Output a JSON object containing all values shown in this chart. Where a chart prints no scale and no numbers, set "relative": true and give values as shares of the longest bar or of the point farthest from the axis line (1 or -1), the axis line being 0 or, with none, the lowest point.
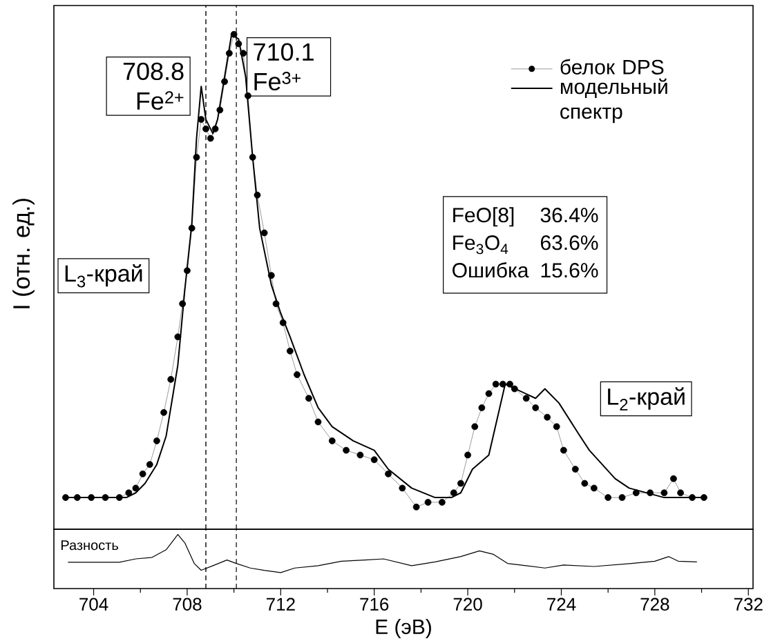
{
  "chart_data": [
    {
      "type": "line",
      "relative": true,
      "ylabel": "I (отн. ед.)",
      "xlim": [
        702.3,
        732.2
      ],
      "xticks": [
        704,
        708,
        712,
        716,
        720,
        724,
        728,
        732
      ],
      "tick_labels": false,
      "legend": "top right",
      "series": [
        {
          "name": "белок DPS",
          "color": "#000000",
          "marker": "circle",
          "x": [
            702.8,
            703.3,
            703.9,
            704.5,
            705.1,
            705.5,
            705.8,
            706.1,
            706.4,
            706.7,
            707.0,
            707.3,
            707.6,
            707.8,
            708.0,
            708.2,
            708.4,
            708.6,
            708.8,
            709.0,
            709.2,
            709.4,
            709.6,
            709.8,
            710.0,
            710.2,
            710.4,
            710.6,
            710.8,
            711.0,
            711.3,
            711.6,
            711.8,
            712.1,
            712.4,
            712.7,
            713.2,
            713.6,
            714.2,
            714.8,
            715.4,
            716.0,
            716.6,
            717.2,
            717.8,
            718.3,
            718.9,
            719.4,
            719.7,
            720.0,
            720.3,
            720.6,
            720.9,
            721.2,
            721.5,
            721.8,
            722.0,
            722.5,
            722.9,
            723.4,
            723.8,
            724.1,
            724.6,
            725.0,
            725.4,
            726.0,
            726.6,
            727.2,
            727.8,
            728.4,
            728.8,
            729.1,
            729.6,
            730.1
          ],
          "values": [
            0.02,
            0.02,
            0.02,
            0.02,
            0.02,
            0.03,
            0.04,
            0.07,
            0.09,
            0.14,
            0.2,
            0.27,
            0.36,
            0.43,
            0.5,
            0.59,
            0.74,
            0.82,
            0.8,
            0.78,
            0.8,
            0.84,
            0.9,
            0.96,
            1,
            0.98,
            0.96,
            0.87,
            0.74,
            0.66,
            0.58,
            0.49,
            0.43,
            0.39,
            0.33,
            0.28,
            0.23,
            0.18,
            0.14,
            0.12,
            0.11,
            0.1,
            0.07,
            0.04,
            0,
            0.01,
            0.01,
            0.03,
            0.05,
            0.11,
            0.17,
            0.21,
            0.24,
            0.26,
            0.26,
            0.26,
            0.25,
            0.23,
            0.21,
            0.19,
            0.17,
            0.12,
            0.08,
            0.05,
            0.04,
            0.02,
            0.02,
            0.03,
            0.03,
            0.03,
            0.06,
            0.03,
            0.02,
            0.02
          ]
        },
        {
          "name": "модельный спектр",
          "color": "#000000",
          "marker": "none",
          "x": [
            702.8,
            705.4,
            705.8,
            706.2,
            706.7,
            707.1,
            707.6,
            707.9,
            708.2,
            708.4,
            708.6,
            708.8,
            709.1,
            709.3,
            709.6,
            709.9,
            710.2,
            710.5,
            710.8,
            711.1,
            711.6,
            712.0,
            712.4,
            713.0,
            713.6,
            714.2,
            715.1,
            716.0,
            716.6,
            717.6,
            718.6,
            719.3,
            719.7,
            720.2,
            720.9,
            721.6,
            722.9,
            723.3,
            723.9,
            724.8,
            725.2,
            726.3,
            726.9,
            728.4,
            728.9,
            730.2
          ],
          "values": [
            0.02,
            0.02,
            0.03,
            0.05,
            0.09,
            0.15,
            0.3,
            0.46,
            0.6,
            0.78,
            0.89,
            0.82,
            0.79,
            0.82,
            0.91,
            1,
            0.99,
            0.91,
            0.74,
            0.59,
            0.47,
            0.41,
            0.36,
            0.28,
            0.21,
            0.17,
            0.14,
            0.12,
            0.08,
            0.04,
            0.02,
            0.02,
            0.03,
            0.08,
            0.11,
            0.26,
            0.23,
            0.25,
            0.22,
            0.15,
            0.12,
            0.06,
            0.04,
            0.02,
            0.02,
            0.02
          ]
        }
      ],
      "ref_lines": [
        {
          "axis": "x",
          "value": 708.8,
          "label": "708.8 Fe$^{2+}$",
          "line_style": "dashed"
        },
        {
          "axis": "x",
          "value": 710.1,
          "label": "710.1 Fe$^{3+}$",
          "line_style": "dashed"
        }
      ],
      "annotations": [
        "L$_{3}$-край",
        "L$_{2}$-край",
        "FeO[8]",
        "36.4%",
        "Fe$_{3}$O$_{4}$",
        "63.6%",
        "Ошибка",
        "15.6%"
      ]
    },
    {
      "type": "line",
      "relative": true,
      "xlabel": "E (эВ)",
      "xlim": [
        702.3,
        732.2
      ],
      "xticks": [
        704,
        708,
        712,
        716,
        720,
        724,
        728,
        732
      ],
      "tick_labels": "x",
      "series": [
        {
          "color": "#000000",
          "x": [
            702.9,
            705.1,
            705.8,
            706.5,
            707.1,
            707.6,
            707.9,
            708.3,
            708.6,
            709.1,
            709.7,
            710.1,
            710.7,
            711.3,
            712.0,
            712.6,
            713.6,
            714.6,
            715.6,
            716.4,
            717.6,
            718.6,
            719.7,
            720.5,
            721.1,
            721.7,
            722.5,
            723.3,
            724.1,
            725.4,
            727.0,
            728.0,
            728.6,
            729.0,
            729.8
          ],
          "values": [
            0.27,
            0.27,
            0.36,
            0.4,
            0.6,
            1,
            0.78,
            0.24,
            0.06,
            0.18,
            0.33,
            0.24,
            0.12,
            0.06,
            0,
            0.12,
            0.18,
            0.3,
            0.33,
            0.36,
            0.18,
            0.28,
            0.42,
            0.57,
            0.48,
            0.24,
            0.18,
            0.12,
            0.2,
            0.16,
            0.24,
            0.3,
            0.42,
            0.3,
            0.28
          ]
        }
      ],
      "ref_lines": [
        {
          "axis": "x",
          "value": 708.8,
          "line_style": "dashed"
        },
        {
          "axis": "x",
          "value": 710.1,
          "line_style": "dashed"
        }
      ],
      "annotations": [
        "Разность"
      ]
    }
  ]
}
